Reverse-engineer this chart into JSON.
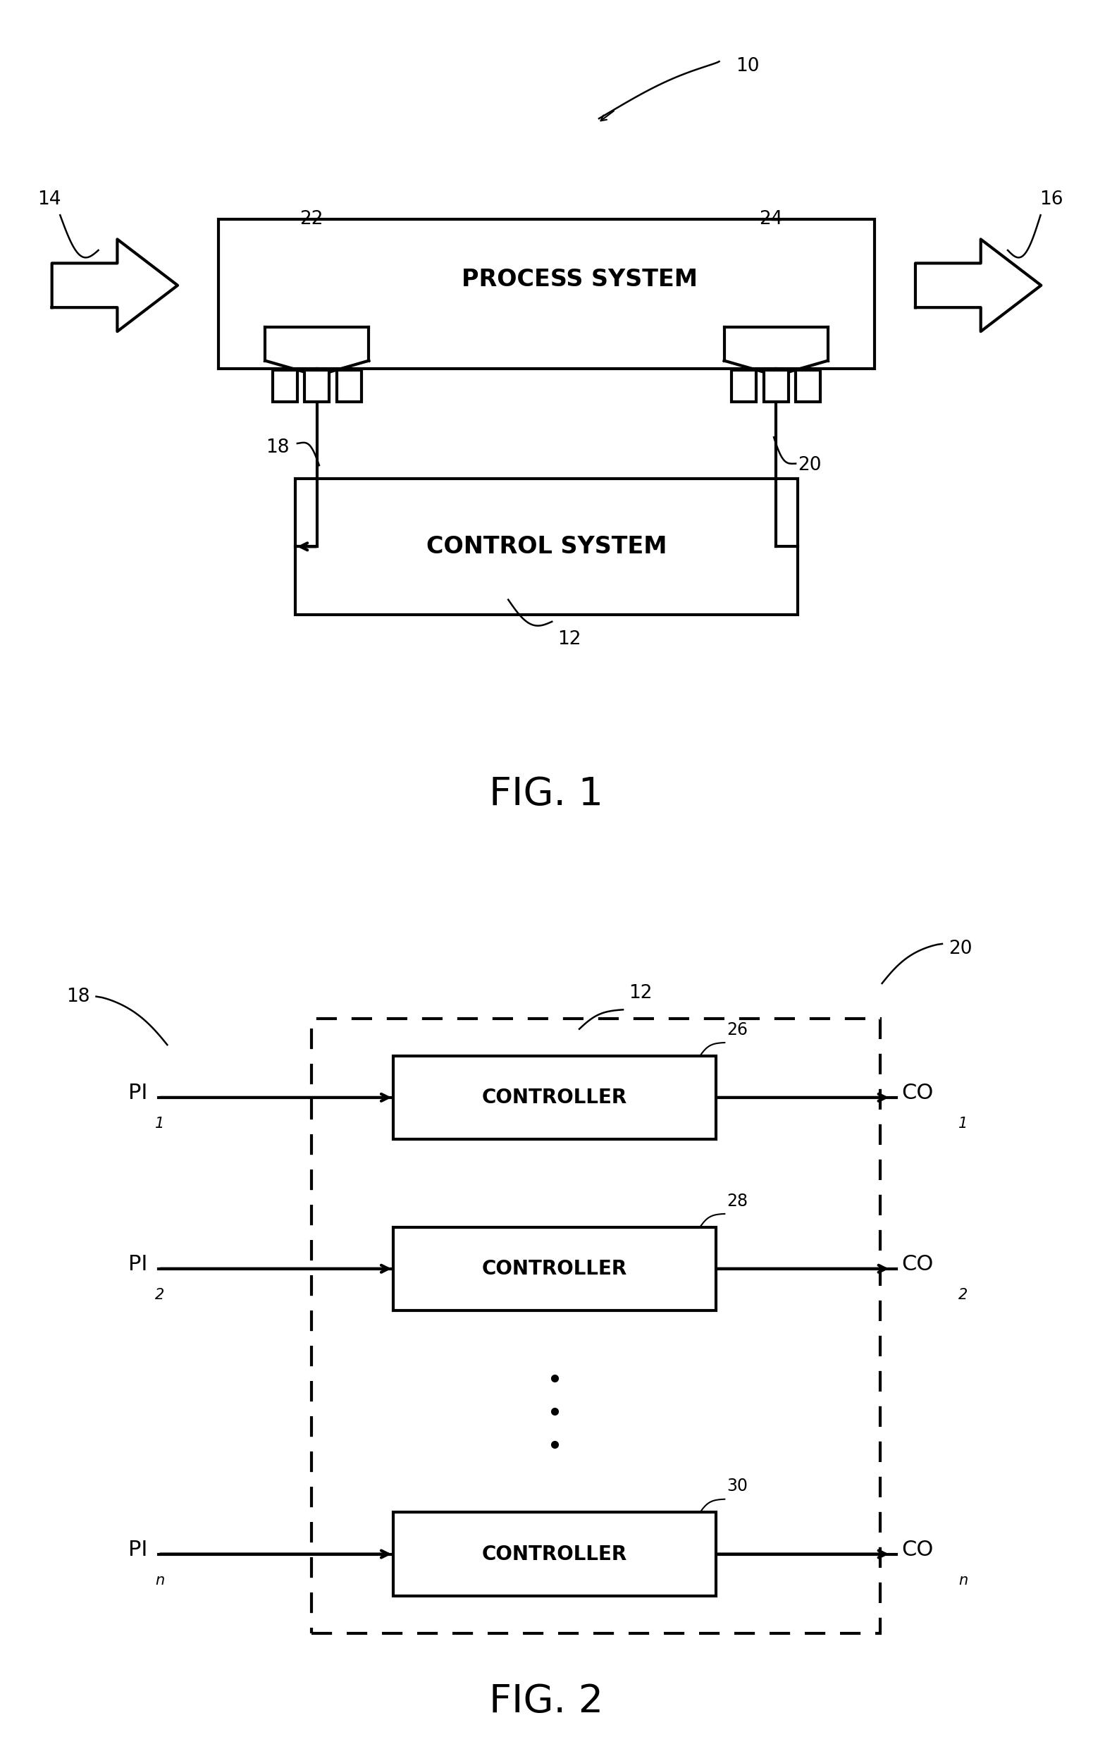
{
  "fig_width": 15.51,
  "fig_height": 24.91,
  "bg_color": "#ffffff",
  "fig1": {
    "label": "FIG. 1",
    "process_system_text": "PROCESS SYSTEM",
    "control_system_text": "CONTROL SYSTEM",
    "refs": {
      "r10": "10",
      "r12": "12",
      "r14": "14",
      "r16": "16",
      "r18": "18",
      "r20": "20",
      "r22": "22",
      "r24": "24"
    }
  },
  "fig2": {
    "label": "FIG. 2",
    "controller_text": "CONTROLLER",
    "pi_subs": [
      "1",
      "2",
      "n"
    ],
    "co_subs": [
      "1",
      "2",
      "n"
    ],
    "refs": {
      "r12": "12",
      "r18": "18",
      "r20": "20",
      "r26": "26",
      "r28": "28",
      "r30": "30"
    }
  }
}
